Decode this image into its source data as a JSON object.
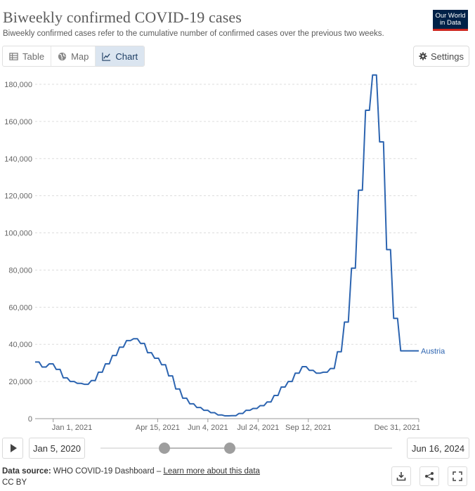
{
  "header": {
    "title": "Biweekly confirmed COVID-19 cases",
    "subtitle": "Biweekly confirmed cases refer to the cumulative number of confirmed cases over the previous two weeks.",
    "logo_line1": "Our World",
    "logo_line2": "in Data"
  },
  "tabs": [
    {
      "label": "Table",
      "icon": "table-icon"
    },
    {
      "label": "Map",
      "icon": "globe-icon"
    },
    {
      "label": "Chart",
      "icon": "line-chart-icon",
      "active": true
    }
  ],
  "settings_label": "Settings",
  "chart_data": {
    "type": "line",
    "series": [
      {
        "name": "Austria",
        "color": "#2c64b0",
        "x": [
          "2020-12-14",
          "2020-12-21",
          "2020-12-28",
          "2021-01-04",
          "2021-01-11",
          "2021-01-18",
          "2021-01-25",
          "2021-02-01",
          "2021-02-08",
          "2021-02-15",
          "2021-02-22",
          "2021-03-01",
          "2021-03-08",
          "2021-03-15",
          "2021-03-22",
          "2021-03-29",
          "2021-04-05",
          "2021-04-12",
          "2021-04-19",
          "2021-04-26",
          "2021-05-03",
          "2021-05-10",
          "2021-05-17",
          "2021-05-24",
          "2021-05-31",
          "2021-06-07",
          "2021-06-14",
          "2021-06-21",
          "2021-06-28",
          "2021-07-05",
          "2021-07-12",
          "2021-07-19",
          "2021-07-26",
          "2021-08-02",
          "2021-08-09",
          "2021-08-16",
          "2021-08-23",
          "2021-08-30",
          "2021-09-06",
          "2021-09-13",
          "2021-09-20",
          "2021-09-27",
          "2021-10-04",
          "2021-10-11",
          "2021-10-18",
          "2021-10-25",
          "2021-11-01",
          "2021-11-08",
          "2021-11-15",
          "2021-11-22",
          "2021-11-29",
          "2021-12-06",
          "2021-12-13",
          "2021-12-20",
          "2021-12-27",
          "2021-12-31"
        ],
        "values": [
          30500,
          27800,
          29500,
          26500,
          22000,
          20000,
          19000,
          18500,
          20500,
          25000,
          29500,
          34000,
          38500,
          42000,
          43000,
          40500,
          35500,
          32500,
          29000,
          23000,
          16000,
          11000,
          8000,
          6000,
          4500,
          3200,
          2000,
          1500,
          1600,
          2800,
          4500,
          5500,
          7000,
          9000,
          12500,
          17000,
          20000,
          24500,
          28000,
          26000,
          24500,
          25000,
          27000,
          36000,
          52000,
          81000,
          123000,
          166000,
          185000,
          149000,
          91000,
          54000,
          36500,
          36500,
          36500,
          36500
        ]
      }
    ],
    "x_ticks": [
      "Jan 1, 2021",
      "Apr 15, 2021",
      "Jun 4, 2021",
      "Jul 24, 2021",
      "Sep 12, 2021",
      "Dec 31, 2021"
    ],
    "y_ticks": [
      "0",
      "20,000",
      "40,000",
      "60,000",
      "80,000",
      "100,000",
      "120,000",
      "140,000",
      "160,000",
      "180,000"
    ],
    "ylim": [
      0,
      180000
    ],
    "xlim": [
      "2020-12-14",
      "2021-12-31"
    ],
    "grid": "horizontal",
    "series_label_placement": "end-of-line"
  },
  "timeline": {
    "start_date": "Jan 5, 2020",
    "end_date": "Jun 16, 2024"
  },
  "footer": {
    "source_prefix": "Data source:",
    "source_text": "WHO COVID-19 Dashboard –",
    "source_link": "Learn more about this data",
    "license": "CC BY"
  }
}
